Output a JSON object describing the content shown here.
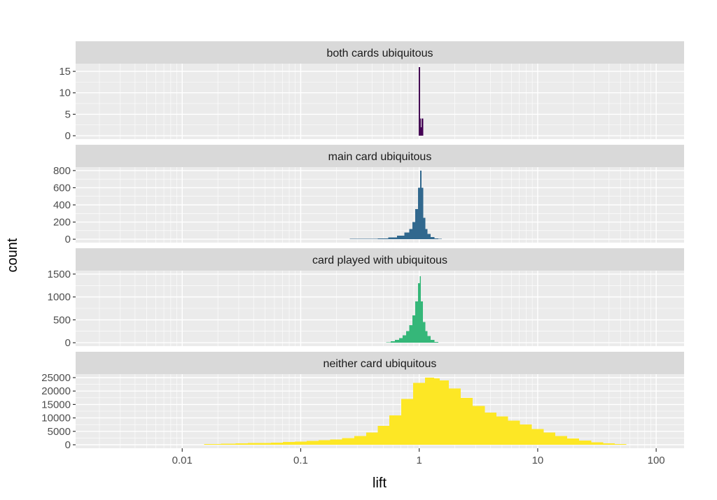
{
  "chart_data": {
    "type": "bar",
    "subtype": "faceted histogram",
    "xlabel": "lift",
    "ylabel": "count",
    "x_scale": "log10",
    "xlim": [
      0.00126,
      172
    ],
    "x_ticks": [
      0.01,
      0.1,
      1,
      10,
      100
    ],
    "x_tick_labels": [
      "0.01",
      "0.1",
      "1",
      "10",
      "100"
    ],
    "grid": true,
    "legend": "none",
    "panels": [
      {
        "title": "both cards ubiquitous",
        "color": "#440154",
        "ylim": [
          -0.8,
          16.8
        ],
        "y_ticks": [
          0,
          5,
          10,
          15
        ],
        "y_tick_labels": [
          "0",
          "5",
          "10",
          "15"
        ],
        "x": [
          1.0,
          1.01,
          1.04,
          1.06
        ],
        "values": [
          16,
          4,
          2,
          4
        ]
      },
      {
        "title": "main card ubiquitous",
        "color": "#31688e",
        "ylim": [
          -40,
          840
        ],
        "y_ticks": [
          0,
          200,
          400,
          600,
          800
        ],
        "y_tick_labels": [
          "0",
          "200",
          "400",
          "600",
          "800"
        ],
        "x": [
          0.3,
          0.4,
          0.5,
          0.6,
          0.7,
          0.8,
          0.85,
          0.9,
          0.95,
          1.0,
          1.03,
          1.06,
          1.1,
          1.15,
          1.2,
          1.3,
          1.4,
          1.5
        ],
        "values": [
          3,
          5,
          10,
          20,
          40,
          80,
          120,
          200,
          350,
          600,
          800,
          600,
          250,
          120,
          60,
          25,
          10,
          4
        ]
      },
      {
        "title": "card played with ubiquitous",
        "color": "#35b779",
        "ylim": [
          -75,
          1575
        ],
        "y_ticks": [
          0,
          500,
          1000,
          1500
        ],
        "y_tick_labels": [
          "0",
          "500",
          "1000",
          "1500"
        ],
        "x": [
          0.55,
          0.6,
          0.65,
          0.7,
          0.75,
          0.8,
          0.85,
          0.9,
          0.95,
          1.0,
          1.02,
          1.05,
          1.1,
          1.15,
          1.2,
          1.3,
          1.4
        ],
        "values": [
          10,
          30,
          60,
          100,
          160,
          250,
          380,
          600,
          900,
          1300,
          1450,
          900,
          450,
          250,
          150,
          60,
          15
        ]
      },
      {
        "title": "neither card ubiquitous",
        "color": "#fde725",
        "ylim": [
          -1300,
          26300
        ],
        "y_ticks": [
          0,
          5000,
          10000,
          15000,
          20000,
          25000
        ],
        "y_tick_labels": [
          "0",
          "5000",
          "10000",
          "15000",
          "20000",
          "25000"
        ],
        "x": [
          0.018,
          0.025,
          0.032,
          0.04,
          0.05,
          0.063,
          0.079,
          0.1,
          0.126,
          0.158,
          0.2,
          0.25,
          0.32,
          0.4,
          0.5,
          0.63,
          0.79,
          1.0,
          1.26,
          1.41,
          1.58,
          2.0,
          2.5,
          3.2,
          4.0,
          5.0,
          6.3,
          7.9,
          10,
          12.6,
          15.8,
          20,
          25,
          32,
          40,
          50
        ],
        "values": [
          300,
          400,
          500,
          600,
          700,
          800,
          1000,
          1200,
          1400,
          1700,
          2000,
          2500,
          3300,
          4500,
          7000,
          11000,
          17000,
          23000,
          25000,
          24800,
          24000,
          21000,
          17500,
          14500,
          12000,
          10500,
          9000,
          7500,
          5800,
          4500,
          3300,
          2300,
          1500,
          900,
          500,
          200
        ]
      }
    ]
  }
}
